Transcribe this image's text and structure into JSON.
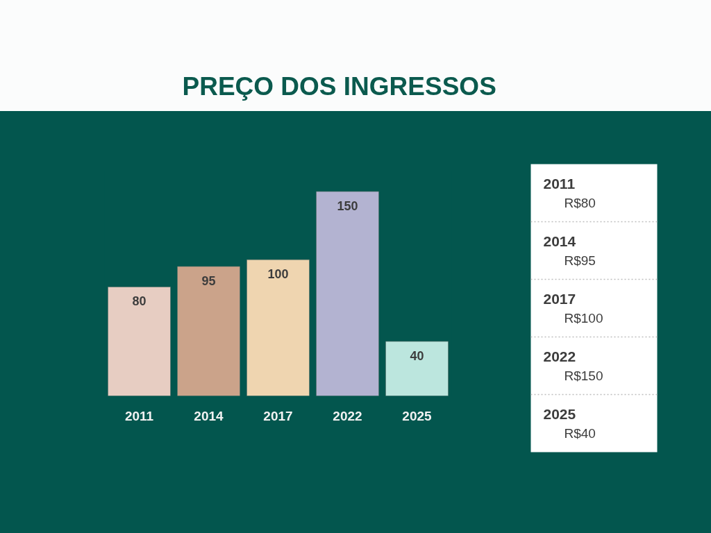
{
  "chart_data": [
    {
      "type": "bar",
      "title": "PREÇO DOS INGRESSOS",
      "categories": [
        "2011",
        "2014",
        "2017",
        "2022",
        "2025"
      ],
      "values": [
        80,
        95,
        100,
        150,
        40
      ],
      "colors": [
        "#e7cdc2",
        "#cba38a",
        "#efd5b0",
        "#b3b3d1",
        "#bce6de"
      ],
      "data_labels": true
    },
    {
      "type": "other",
      "annotations": [
        "2011",
        "R$80",
        "2014",
        "R$95",
        "2017",
        "R$100",
        "2022",
        "R$150",
        "2025",
        "R$40"
      ]
    }
  ]
}
